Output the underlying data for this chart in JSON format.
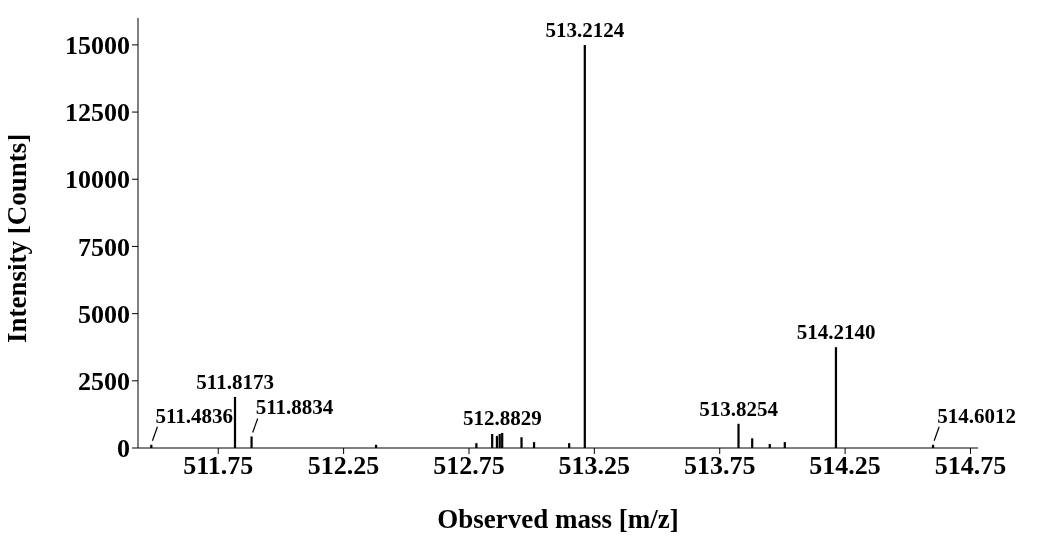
{
  "chart_data": {
    "type": "bar",
    "xlabel": "Observed mass [m/z]",
    "ylabel": "Intensity [Counts]",
    "x": [
      511.4836,
      511.8173,
      511.8834,
      512.38,
      512.78,
      512.843,
      512.862,
      512.873,
      512.8829,
      512.96,
      513.01,
      513.15,
      513.2124,
      513.8254,
      513.88,
      513.95,
      514.01,
      514.214,
      514.6012
    ],
    "values": [
      120,
      1900,
      430,
      120,
      180,
      520,
      450,
      520,
      560,
      400,
      220,
      180,
      15000,
      900,
      360,
      150,
      220,
      3750,
      120
    ],
    "color": "#000000",
    "xlim": [
      511.43,
      514.78
    ],
    "xticks": [
      511.75,
      512.25,
      512.75,
      513.25,
      513.75,
      514.25,
      514.75
    ],
    "ylim": [
      0,
      16000
    ],
    "yticks": [
      0,
      2500,
      5000,
      7500,
      10000,
      12500,
      15000
    ],
    "grid": false,
    "legend": false,
    "annotations": [
      {
        "text": "511.4836",
        "x": 511.4836,
        "y": 120
      },
      {
        "text": "511.8173",
        "x": 511.8173,
        "y": 1900
      },
      {
        "text": "511.8834",
        "x": 511.8834,
        "y": 430
      },
      {
        "text": "512.8829",
        "x": 512.8829,
        "y": 560
      },
      {
        "text": "513.2124",
        "x": 513.2124,
        "y": 15000
      },
      {
        "text": "513.8254",
        "x": 513.8254,
        "y": 900
      },
      {
        "text": "514.2140",
        "x": 514.214,
        "y": 3750
      },
      {
        "text": "514.6012",
        "x": 514.6012,
        "y": 120
      }
    ]
  }
}
